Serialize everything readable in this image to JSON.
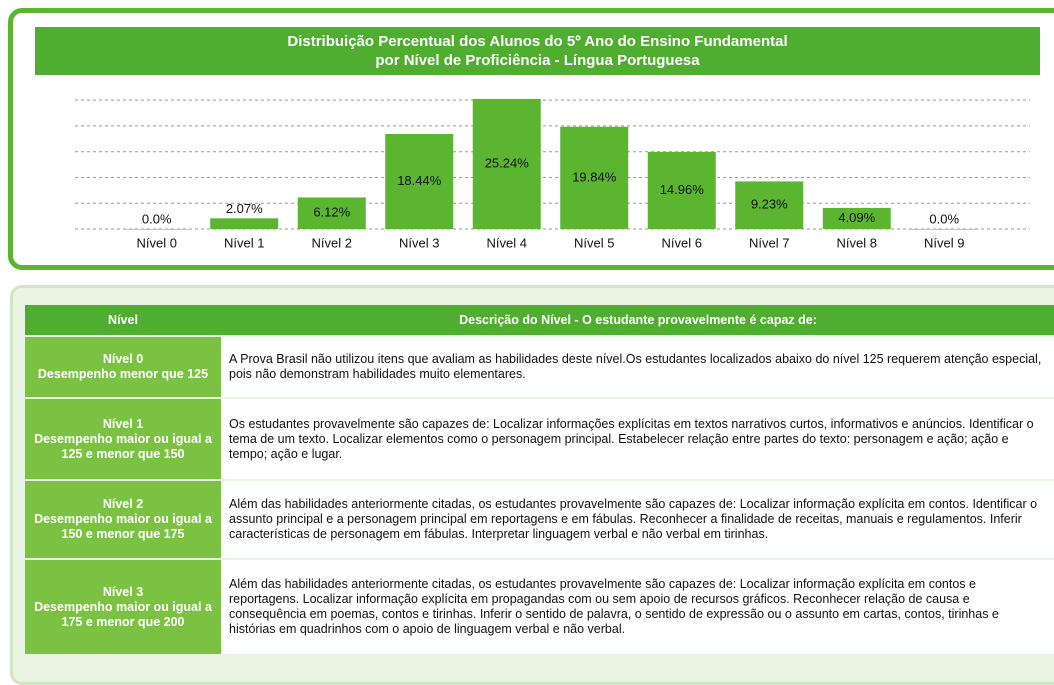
{
  "chart_data": {
    "type": "bar",
    "title": [
      "Distribuição Percentual dos Alunos do 5º Ano do Ensino Fundamental",
      "por Nível de Proficiência - Língua Portuguesa"
    ],
    "categories": [
      "Nível 0",
      "Nível 1",
      "Nível 2",
      "Nível 3",
      "Nível 4",
      "Nível 5",
      "Nível 6",
      "Nível 7",
      "Nível 8",
      "Nível 9"
    ],
    "values": [
      0.0,
      2.07,
      6.12,
      18.44,
      25.24,
      19.84,
      14.96,
      9.23,
      4.09,
      0.0
    ],
    "value_labels": [
      "0.0%",
      "2.07%",
      "6.12%",
      "18.44%",
      "25.24%",
      "19.84%",
      "14.96%",
      "9.23%",
      "4.09%",
      "0.0%"
    ],
    "color": "#5cb531",
    "ylim": [
      0,
      26
    ],
    "yticks": [
      0,
      5,
      10,
      15,
      20,
      25
    ],
    "grid": true
  },
  "table": {
    "header": [
      "Nível",
      "Descrição do Nível - O estudante provavelmente é capaz de:"
    ],
    "rows": [
      [
        "Nível 0",
        "Desempenho menor que 125",
        "A Prova Brasil não utilizou itens que avaliam as habilidades deste nível.Os estudantes localizados abaixo do nível 125 requerem atenção especial, pois não demonstram habilidades muito elementares."
      ],
      [
        "Nível 1",
        "Desempenho maior ou igual a 125 e menor que 150",
        "Os estudantes provavelmente são capazes de: Localizar informações explícitas em textos narrativos curtos, informativos e anúncios. Identificar o tema de um texto. Localizar elementos como o personagem principal. Estabelecer relação entre partes do texto: personagem e ação; ação e tempo; ação e lugar."
      ],
      [
        "Nível 2",
        "Desempenho maior ou igual a 150 e menor que 175",
        "Além das habilidades anteriormente citadas, os estudantes provavelmente são capazes de: Localizar informação explícita em contos. Identificar o assunto principal e a personagem principal em reportagens e em fábulas. Reconhecer a finalidade de receitas, manuais e regulamentos. Inferir características de personagem em fábulas. Interpretar linguagem verbal e não verbal em tirinhas."
      ],
      [
        "Nível 3",
        "Desempenho maior ou igual a 175 e menor que 200",
        "Além das habilidades anteriormente citadas, os estudantes provavelmente são capazes de: Localizar informação explícita em contos e reportagens. Localizar informação explícita em propagandas com ou sem apoio de recursos gráficos. Reconhecer relação de causa e consequência em poemas, contos e tirinhas. Inferir o sentido de palavra, o sentido de expressão ou o assunto em cartas, contos, tirinhas e histórias em quadrinhos com o apoio de linguagem verbal e não verbal."
      ]
    ]
  }
}
